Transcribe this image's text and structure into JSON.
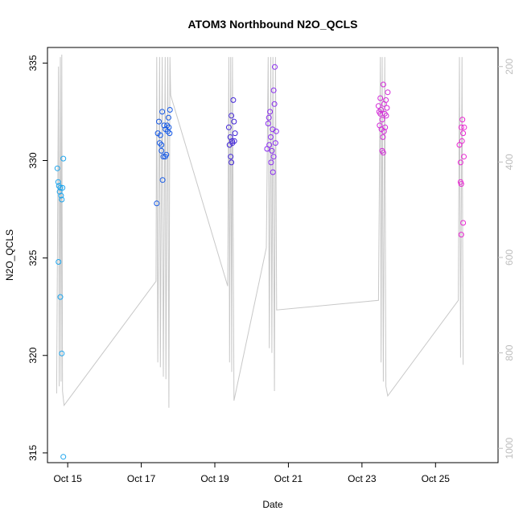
{
  "chart_data": {
    "type": "scatter",
    "title": "ATOM3 Northbound N2O_QCLS",
    "xlabel": "Date",
    "ylabel": "N2O_QCLS",
    "xlim": [
      14.45,
      26.7
    ],
    "ylim": [
      314.5,
      335.8
    ],
    "x_ticks": [
      {
        "value": 15,
        "label": "Oct 15"
      },
      {
        "value": 17,
        "label": "Oct 17"
      },
      {
        "value": 19,
        "label": "Oct 19"
      },
      {
        "value": 21,
        "label": "Oct 21"
      },
      {
        "value": 23,
        "label": "Oct 23"
      },
      {
        "value": 25,
        "label": "Oct 25"
      }
    ],
    "y_ticks": [
      315,
      320,
      325,
      330,
      335
    ],
    "right_axis": {
      "range": [
        1030,
        160
      ],
      "ticks": [
        200,
        400,
        600,
        800,
        1000
      ],
      "color": "#bdbdbd"
    },
    "grid": false,
    "legend": "none",
    "line_color": "#c8c8c8",
    "pressure_line": [
      [
        14.7,
        885
      ],
      [
        14.75,
        200
      ],
      [
        14.77,
        870
      ],
      [
        14.8,
        180
      ],
      [
        14.82,
        860
      ],
      [
        14.84,
        175
      ],
      [
        14.86,
        880
      ],
      [
        14.9,
        910
      ],
      [
        17.4,
        650
      ],
      [
        17.42,
        180
      ],
      [
        17.45,
        820
      ],
      [
        17.5,
        180
      ],
      [
        17.52,
        830
      ],
      [
        17.57,
        180
      ],
      [
        17.6,
        850
      ],
      [
        17.65,
        180
      ],
      [
        17.67,
        855
      ],
      [
        17.72,
        180
      ],
      [
        17.75,
        915
      ],
      [
        17.78,
        180
      ],
      [
        17.8,
        260
      ],
      [
        19.35,
        660
      ],
      [
        19.38,
        180
      ],
      [
        19.4,
        820
      ],
      [
        19.43,
        180
      ],
      [
        19.46,
        840
      ],
      [
        19.48,
        180
      ],
      [
        19.52,
        900
      ],
      [
        20.4,
        580
      ],
      [
        20.45,
        180
      ],
      [
        20.48,
        790
      ],
      [
        20.52,
        180
      ],
      [
        20.55,
        800
      ],
      [
        20.58,
        180
      ],
      [
        20.62,
        880
      ],
      [
        20.65,
        180
      ],
      [
        20.68,
        710
      ],
      [
        23.45,
        690
      ],
      [
        23.5,
        180
      ],
      [
        23.52,
        820
      ],
      [
        23.55,
        180
      ],
      [
        23.58,
        860
      ],
      [
        23.62,
        180
      ],
      [
        23.65,
        870
      ],
      [
        23.7,
        890
      ],
      [
        25.62,
        690
      ],
      [
        25.65,
        180
      ],
      [
        25.68,
        810
      ],
      [
        25.72,
        180
      ],
      [
        25.75,
        825
      ]
    ],
    "series": [
      {
        "color": "#1fa6ee",
        "points": [
          [
            14.72,
            329.6
          ],
          [
            14.74,
            328.9
          ],
          [
            14.76,
            328.7
          ],
          [
            14.78,
            328.4
          ],
          [
            14.8,
            328.6
          ],
          [
            14.82,
            328.2
          ],
          [
            14.84,
            328.0
          ],
          [
            14.86,
            328.6
          ],
          [
            14.88,
            330.1
          ],
          [
            14.75,
            324.8
          ],
          [
            14.8,
            323.0
          ],
          [
            14.84,
            320.1
          ],
          [
            14.88,
            314.8
          ]
        ]
      },
      {
        "color": "#1559e6",
        "points": [
          [
            17.42,
            327.8
          ],
          [
            17.45,
            331.4
          ],
          [
            17.48,
            332.0
          ],
          [
            17.5,
            330.9
          ],
          [
            17.52,
            331.3
          ],
          [
            17.55,
            330.5
          ],
          [
            17.57,
            332.5
          ],
          [
            17.6,
            330.2
          ],
          [
            17.62,
            331.8
          ],
          [
            17.65,
            330.2
          ],
          [
            17.66,
            331.6
          ],
          [
            17.68,
            330.3
          ],
          [
            17.7,
            331.8
          ],
          [
            17.72,
            331.5
          ],
          [
            17.74,
            332.2
          ],
          [
            17.75,
            331.7
          ],
          [
            17.77,
            331.4
          ],
          [
            17.78,
            332.6
          ],
          [
            17.58,
            329.0
          ],
          [
            17.55,
            330.8
          ]
        ]
      },
      {
        "color": "#4225d8",
        "points": [
          [
            19.38,
            331.7
          ],
          [
            19.4,
            330.8
          ],
          [
            19.42,
            331.2
          ],
          [
            19.43,
            330.2
          ],
          [
            19.45,
            332.3
          ],
          [
            19.47,
            331.0
          ],
          [
            19.48,
            330.9
          ],
          [
            19.5,
            333.1
          ],
          [
            19.52,
            332.0
          ],
          [
            19.53,
            331.0
          ],
          [
            19.55,
            331.4
          ],
          [
            19.45,
            329.9
          ]
        ]
      },
      {
        "color": "#8a2cf0",
        "points": [
          [
            20.42,
            330.6
          ],
          [
            20.45,
            331.9
          ],
          [
            20.47,
            332.2
          ],
          [
            20.48,
            330.8
          ],
          [
            20.5,
            332.5
          ],
          [
            20.52,
            331.2
          ],
          [
            20.53,
            329.9
          ],
          [
            20.55,
            330.5
          ],
          [
            20.57,
            331.6
          ],
          [
            20.58,
            329.4
          ],
          [
            20.6,
            333.6
          ],
          [
            20.62,
            332.9
          ],
          [
            20.63,
            334.8
          ],
          [
            20.65,
            330.9
          ],
          [
            20.67,
            331.5
          ],
          [
            20.6,
            330.2
          ]
        ]
      },
      {
        "color": "#d42bd9",
        "points": [
          [
            23.45,
            332.8
          ],
          [
            23.47,
            332.5
          ],
          [
            23.48,
            331.8
          ],
          [
            23.5,
            333.2
          ],
          [
            23.52,
            332.6
          ],
          [
            23.53,
            331.6
          ],
          [
            23.55,
            332.1
          ],
          [
            23.57,
            331.2
          ],
          [
            23.58,
            333.9
          ],
          [
            23.6,
            332.9
          ],
          [
            23.62,
            332.4
          ],
          [
            23.63,
            331.7
          ],
          [
            23.65,
            333.1
          ],
          [
            23.66,
            332.3
          ],
          [
            23.68,
            332.7
          ],
          [
            23.7,
            333.5
          ],
          [
            23.55,
            330.5
          ],
          [
            23.58,
            330.4
          ],
          [
            23.5,
            332.4
          ],
          [
            23.6,
            331.5
          ]
        ]
      },
      {
        "color": "#ea26d3",
        "points": [
          [
            25.65,
            330.8
          ],
          [
            25.68,
            329.9
          ],
          [
            25.7,
            331.7
          ],
          [
            25.72,
            331.0
          ],
          [
            25.73,
            332.1
          ],
          [
            25.75,
            331.4
          ],
          [
            25.77,
            330.2
          ],
          [
            25.78,
            331.7
          ],
          [
            25.68,
            328.9
          ],
          [
            25.7,
            328.8
          ],
          [
            25.75,
            326.8
          ],
          [
            25.7,
            326.2
          ]
        ]
      }
    ]
  }
}
